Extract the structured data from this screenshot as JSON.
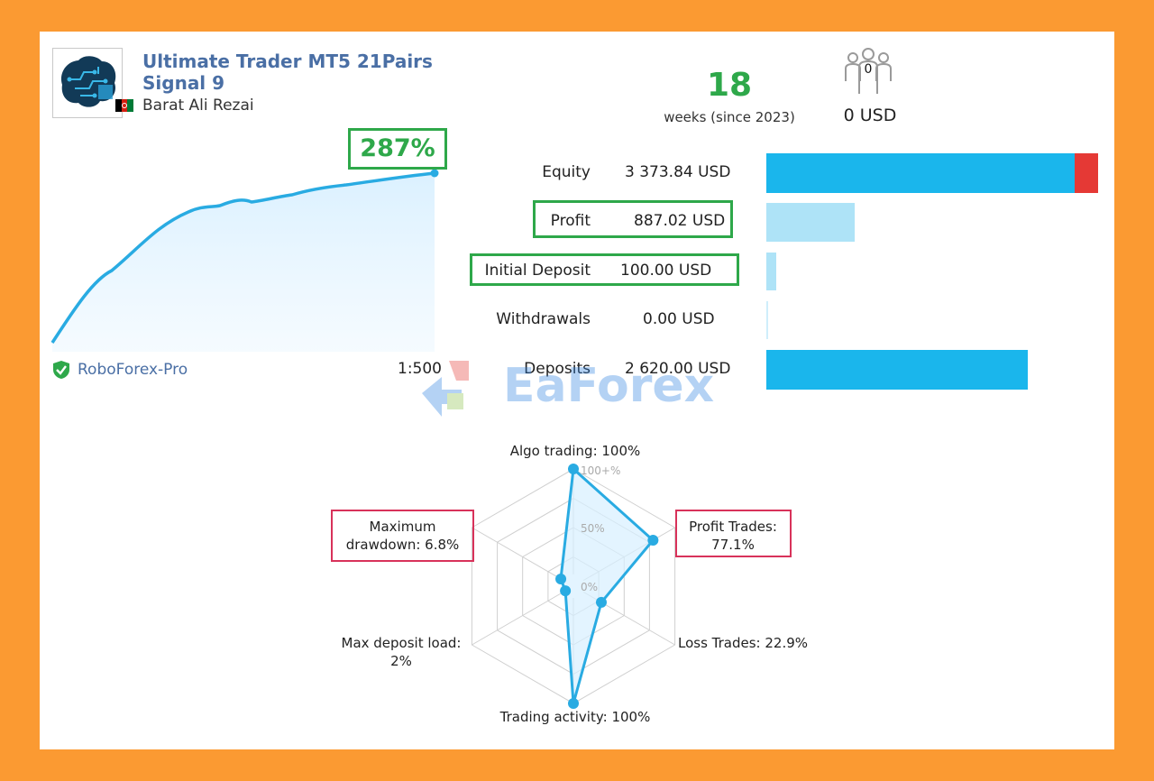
{
  "signal": {
    "title_line1": "Ultimate Trader MT5 21Pairs",
    "title_line2": "Signal 9",
    "author": "Barat Ali Rezai",
    "weeks": "18",
    "weeks_label": "weeks (since 2023)",
    "subscribers": "0",
    "subscription_price": "0 USD",
    "growth": "287%",
    "broker": "RoboForex-Pro",
    "leverage": "1:500"
  },
  "stats": [
    {
      "label": "Equity",
      "value": "3 373.84 USD"
    },
    {
      "label": "Profit",
      "value": "887.02 USD"
    },
    {
      "label": "Initial Deposit",
      "value": "100.00 USD"
    },
    {
      "label": "Withdrawals",
      "value": "0.00 USD"
    },
    {
      "label": "Deposits",
      "value": "2 620.00 USD"
    }
  ],
  "bars": {
    "equity_fraction": 0.92,
    "equity_loss_fraction": 0.065,
    "profit_fraction": 0.245,
    "initial_deposit_fraction": 0.028,
    "withdrawals_fraction": 0.005,
    "deposits_fraction": 0.725
  },
  "radar": {
    "labels": {
      "algo": "Algo trading: 100%",
      "profit_trades_1": "Profit Trades:",
      "profit_trades_2": "77.1%",
      "loss_trades": "Loss Trades: 22.9%",
      "activity": "Trading activity: 100%",
      "deposit_load_1": "Max deposit load:",
      "deposit_load_2": "2%",
      "drawdown_1": "Maximum",
      "drawdown_2": "drawdown: 6.8%"
    },
    "scale": [
      "100+%",
      "50%",
      "0%"
    ],
    "values": [
      1.0,
      0.771,
      0.229,
      1.0,
      0.02,
      0.068
    ]
  },
  "watermark_text": "EaForex",
  "colors": {
    "accent": "#2ea84a",
    "bar_blue": "#1ab6ec",
    "bar_light": "#aee3f7",
    "bar_red": "#e53935",
    "highlight_pink": "#d8325a",
    "frame": "#fb9a32"
  }
}
